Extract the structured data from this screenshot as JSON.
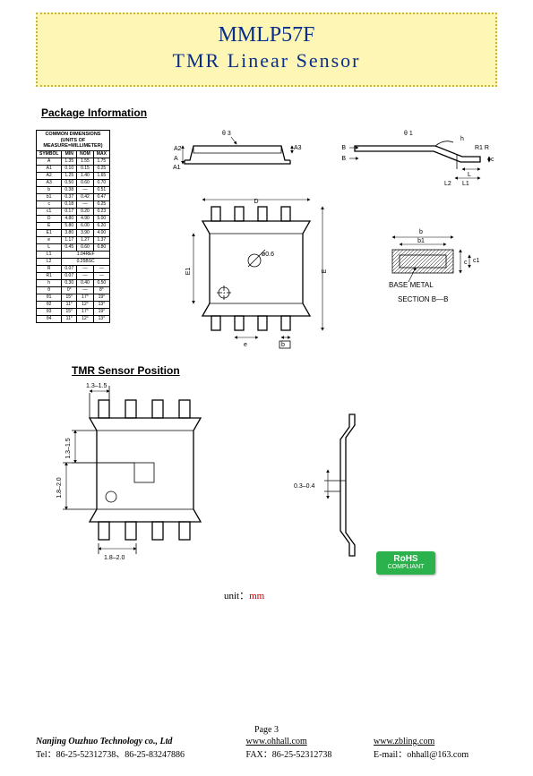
{
  "title": {
    "l1": "MMLP57F",
    "l2": "TMR  Linear  Sensor"
  },
  "sections": {
    "pkg": "Package Information",
    "tmr": "TMR Sensor Position"
  },
  "dims": {
    "caption": "COMMON DIMENSIONS\n(UNITS OF MEASURE=MILLIMETER)",
    "hdr": [
      "SYMBOL",
      "MIN",
      "NOM",
      "MAX"
    ],
    "rows": [
      [
        "A",
        "1.35",
        "1.55",
        "1.75"
      ],
      [
        "A1",
        "0.10",
        "0.15",
        "0.25"
      ],
      [
        "A2",
        "1.25",
        "1.40",
        "1.65"
      ],
      [
        "A3",
        "0.50",
        "0.60",
        "0.70"
      ],
      [
        "b",
        "0.38",
        "—",
        "0.51"
      ],
      [
        "b1",
        "0.37",
        "0.42",
        "0.47"
      ],
      [
        "c",
        "0.18",
        "—",
        "0.25"
      ],
      [
        "c1",
        "0.17",
        "0.20",
        "0.23"
      ],
      [
        "D",
        "4.80",
        "4.90",
        "5.00"
      ],
      [
        "E",
        "5.80",
        "6.00",
        "6.20"
      ],
      [
        "E1",
        "3.80",
        "3.90",
        "4.00"
      ],
      [
        "e",
        "1.17",
        "1.27",
        "1.37"
      ],
      [
        "L",
        "0.45",
        "0.60",
        "0.80"
      ],
      [
        "L1",
        "",
        "1.04REF",
        ""
      ],
      [
        "L2",
        "",
        "0.25BSC",
        ""
      ],
      [
        "R",
        "0.07",
        "—",
        "—"
      ],
      [
        "R1",
        "0.07",
        "—",
        "—"
      ],
      [
        "h",
        "0.30",
        "0.40",
        "0.50"
      ],
      [
        "θ",
        "0°",
        "—",
        "8°"
      ],
      [
        "θ1",
        "15°",
        "17°",
        "19°"
      ],
      [
        "θ2",
        "11°",
        "12°",
        "13°"
      ],
      [
        "θ3",
        "15°",
        "17°",
        "19°"
      ],
      [
        "θ4",
        "11°",
        "12°",
        "13°"
      ]
    ]
  },
  "pkg_svg": {
    "topview": {
      "e3": "θ 3",
      "A2": "A2",
      "A": "A",
      "A1": "A1",
      "A3": "A3"
    },
    "lead_right": {
      "e1": "θ 1",
      "h": "h",
      "R1": "R1 R",
      "L": "L",
      "L1": "L1",
      "L2": "L2",
      "c": "c"
    },
    "bottom": {
      "D": "D",
      "E1": "E1",
      "E": "E",
      "e": "e",
      "b": "b",
      "phi": "ø0.6"
    },
    "section": {
      "b": "b",
      "b1": "b1",
      "c": "c",
      "c1": "c1",
      "bm": "BASE METAL",
      "sec": "SECTION B—B"
    }
  },
  "tmr_svg": {
    "dim_h1": "1.3–1.5",
    "dim_v1": "1.3–1.5",
    "dim_v2": "1.8–2.0",
    "dim_h2": "1.8–2.0",
    "side_dim": "0.3–0.4"
  },
  "unit": {
    "label": "unit：",
    "mm": "mm"
  },
  "rohs": {
    "t": "RoHS",
    "s": "COMPLIANT"
  },
  "footer": {
    "page": "Page 3",
    "company": "Nanjing Ouzhuo Technology co., Ltd",
    "web1": "www.ohhall.com",
    "web2": "www.zbling.com",
    "tel": "Tel：86-25-52312738、86-25-83247886",
    "fax": "FAX：86-25-52312738",
    "email": "E-mail：ohhall@163.com"
  }
}
